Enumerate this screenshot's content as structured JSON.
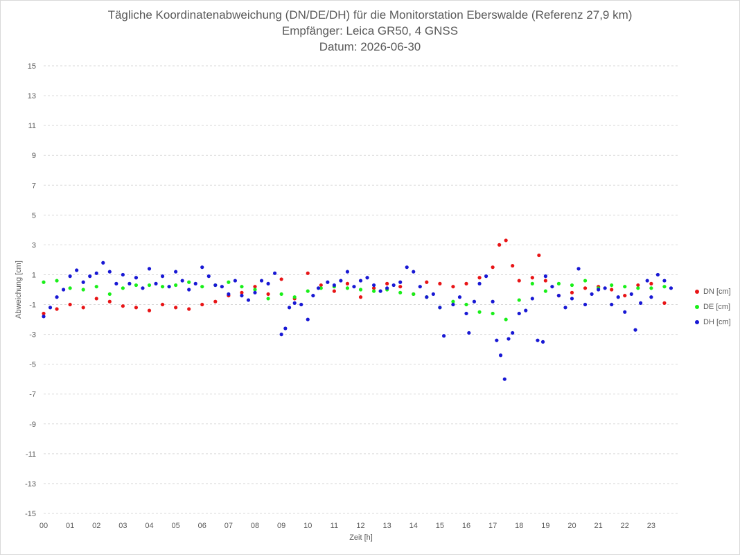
{
  "chart_data": {
    "type": "scatter",
    "title": "Tägliche Koordinatenabweichung (DN/DE/DH) für die Monitorstation Eberswalde (Referenz 27,9 km)",
    "subtitle1": "Empfänger: Leica GR50, 4 GNSS",
    "subtitle2": "Datum: 2026-06-30",
    "xlabel": "Zeit [h]",
    "ylabel": "Abweichung [cm]",
    "xlim": [
      0,
      24
    ],
    "ylim": [
      -15,
      15
    ],
    "xticks": [
      "00",
      "01",
      "02",
      "03",
      "04",
      "05",
      "06",
      "07",
      "08",
      "09",
      "10",
      "11",
      "12",
      "13",
      "14",
      "15",
      "16",
      "17",
      "18",
      "19",
      "20",
      "21",
      "22",
      "23"
    ],
    "yticks": [
      "15",
      "13",
      "11",
      "9",
      "7",
      "5",
      "3",
      "1",
      "-1",
      "-3",
      "-5",
      "-7",
      "-9",
      "-11",
      "-13",
      "-15"
    ],
    "grid": "horizontal dashed",
    "legend_position": "right",
    "series": [
      {
        "name": "DN [cm]",
        "color": "#e81416",
        "x": [
          0,
          0.5,
          1,
          1.5,
          2,
          2.5,
          3,
          3.5,
          4,
          4.5,
          5,
          5.5,
          6,
          6.5,
          7,
          7.5,
          8,
          8.5,
          9,
          9.5,
          10,
          10.5,
          11,
          11.5,
          12,
          12.5,
          13,
          13.5,
          14,
          14.5,
          15,
          15.5,
          16,
          16.5,
          17,
          17.25,
          17.5,
          17.75,
          18,
          18.5,
          18.75,
          19,
          19.5,
          20,
          20.5,
          21,
          21.5,
          22,
          22.5,
          23,
          23.5
        ],
        "y": [
          -1.6,
          -1.3,
          -1.0,
          -1.2,
          -0.6,
          -0.8,
          -1.1,
          -1.2,
          -1.4,
          -1.0,
          -1.2,
          -1.3,
          -1.0,
          -0.8,
          -0.4,
          -0.2,
          0.2,
          -0.3,
          0.7,
          -0.6,
          1.1,
          0.3,
          -0.1,
          0.4,
          -0.5,
          0.1,
          0.4,
          0.2,
          -0.3,
          0.5,
          0.4,
          0.2,
          0.4,
          0.8,
          1.5,
          3.0,
          3.3,
          1.6,
          0.6,
          0.8,
          2.3,
          0.6,
          -0.4,
          -0.2,
          0.1,
          0.2,
          0.0,
          -0.4,
          0.3,
          0.4,
          -0.9
        ]
      },
      {
        "name": "DE [cm]",
        "color": "#19ef19",
        "x": [
          0,
          0.5,
          1,
          1.5,
          2,
          2.5,
          3,
          3.5,
          4,
          4.5,
          5,
          5.5,
          6,
          6.5,
          7,
          7.5,
          8,
          8.5,
          9,
          9.5,
          10,
          10.5,
          11,
          11.5,
          12,
          12.5,
          13,
          13.5,
          14,
          14.5,
          15,
          15.5,
          16,
          16.5,
          17,
          17.5,
          18,
          18.5,
          19,
          19.5,
          20,
          20.5,
          21,
          21.5,
          22,
          22.5,
          23,
          23.5
        ],
        "y": [
          0.5,
          0.6,
          0.1,
          0.0,
          0.2,
          -0.3,
          0.1,
          0.3,
          0.3,
          0.2,
          0.3,
          0.5,
          0.2,
          0.3,
          0.5,
          0.2,
          0.0,
          -0.6,
          -0.3,
          -0.5,
          -0.1,
          0.1,
          0.2,
          0.1,
          0.0,
          -0.1,
          0.0,
          -0.2,
          -0.3,
          -0.5,
          -1.2,
          -0.8,
          -1.0,
          -1.5,
          -1.6,
          -2.0,
          -0.7,
          0.4,
          -0.1,
          0.4,
          0.3,
          0.6,
          0.1,
          0.3,
          0.2,
          0.1,
          0.1,
          0.2
        ]
      },
      {
        "name": "DH [cm]",
        "color": "#1818d4",
        "x": [
          0,
          0.25,
          0.5,
          0.75,
          1,
          1.25,
          1.5,
          1.75,
          2,
          2.25,
          2.5,
          2.75,
          3,
          3.25,
          3.5,
          3.75,
          4,
          4.25,
          4.5,
          4.75,
          5,
          5.25,
          5.5,
          5.75,
          6,
          6.25,
          6.5,
          6.75,
          7,
          7.25,
          7.5,
          7.75,
          8,
          8.25,
          8.5,
          8.75,
          9,
          9.15,
          9.3,
          9.5,
          9.75,
          10,
          10.2,
          10.4,
          10.75,
          11,
          11.25,
          11.5,
          11.75,
          12,
          12.25,
          12.5,
          12.75,
          13,
          13.25,
          13.5,
          13.75,
          14,
          14.25,
          14.5,
          14.75,
          15,
          15.15,
          15.5,
          15.75,
          16,
          16.1,
          16.3,
          16.5,
          16.75,
          17,
          17.15,
          17.3,
          17.45,
          17.6,
          17.75,
          18,
          18.25,
          18.5,
          18.7,
          18.9,
          19,
          19.25,
          19.5,
          19.75,
          20,
          20.25,
          20.5,
          20.75,
          21,
          21.25,
          21.5,
          21.75,
          22,
          22.25,
          22.4,
          22.6,
          22.85,
          23,
          23.25,
          23.5,
          23.75
        ],
        "y": [
          -1.8,
          -1.2,
          -0.5,
          0.0,
          0.9,
          1.3,
          0.5,
          0.9,
          1.1,
          1.8,
          1.2,
          0.4,
          1.0,
          0.4,
          0.8,
          0.1,
          1.4,
          0.4,
          0.9,
          0.2,
          1.2,
          0.6,
          0.0,
          0.4,
          1.5,
          0.9,
          0.3,
          0.2,
          -0.3,
          0.6,
          -0.4,
          -0.7,
          -0.2,
          0.6,
          0.4,
          1.1,
          -3.0,
          -2.6,
          -1.2,
          -0.9,
          -1.0,
          -2.0,
          -0.4,
          0.1,
          0.5,
          0.3,
          0.6,
          1.2,
          0.2,
          0.6,
          0.8,
          0.3,
          -0.1,
          0.1,
          0.3,
          0.5,
          1.5,
          1.2,
          0.2,
          -0.5,
          -0.3,
          -1.2,
          -3.1,
          -1.0,
          -0.5,
          -1.6,
          -2.9,
          -0.8,
          0.4,
          0.9,
          -0.8,
          -3.4,
          -4.4,
          -6.0,
          -3.3,
          -2.9,
          -1.6,
          -1.4,
          -0.6,
          -3.4,
          -3.5,
          0.9,
          0.2,
          -0.4,
          -1.2,
          -0.6,
          1.4,
          -1.0,
          -0.3,
          0.0,
          0.1,
          -1.0,
          -0.5,
          -1.5,
          -0.3,
          -2.7,
          -0.9,
          0.6,
          -0.5,
          1.0,
          0.6,
          0.1
        ]
      }
    ]
  }
}
